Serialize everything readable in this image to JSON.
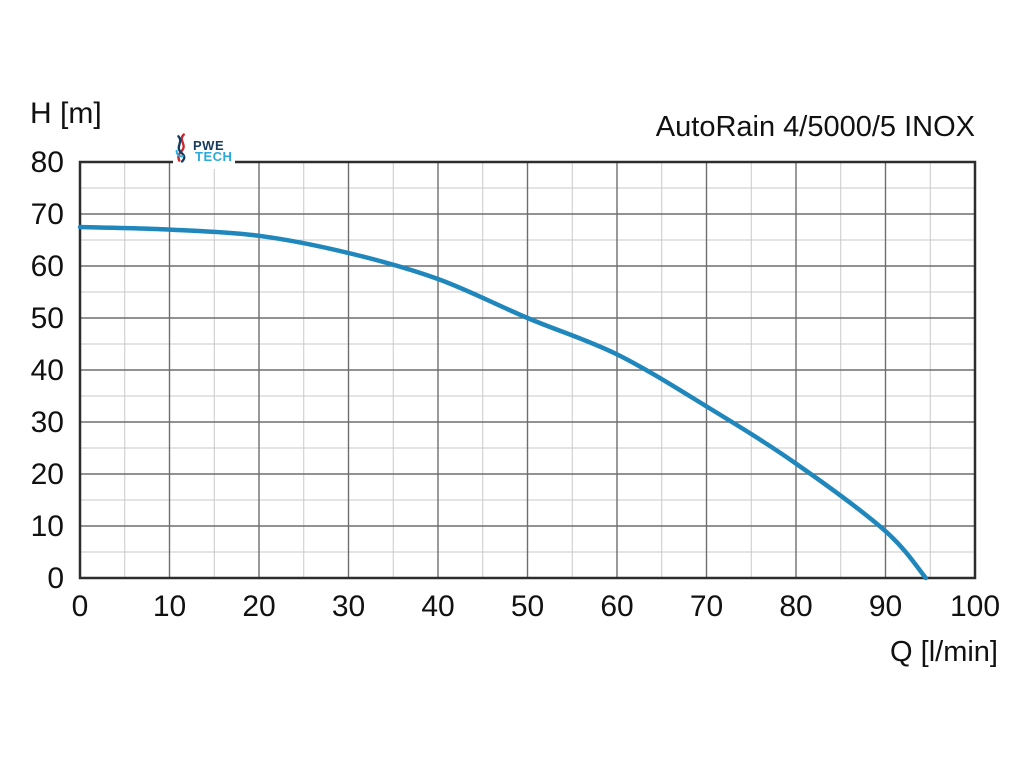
{
  "logo": {
    "word_top": "PWE",
    "word_bottom": "TECH"
  },
  "colors": {
    "curve": "#1f87bc",
    "grid_major": "#6e6e6e",
    "grid_minor": "#c9c9c9",
    "plot_border": "#2d2d2d",
    "text": "#111111",
    "logo_navy": "#163a5f",
    "logo_cyan": "#2aa9dc",
    "logo_red": "#c9252c"
  },
  "chart_data": {
    "type": "line",
    "title": "AutoRain 4/5000/5 INOX",
    "xlabel": "Q [l/min]",
    "ylabel": "H [m]",
    "xlim": [
      0,
      100
    ],
    "ylim": [
      0,
      80
    ],
    "x_ticks": [
      0,
      10,
      20,
      30,
      40,
      50,
      60,
      70,
      80,
      90,
      100
    ],
    "y_ticks": [
      0,
      10,
      20,
      30,
      40,
      50,
      60,
      70,
      80
    ],
    "minor_grid_step": 5,
    "grid": "major+minor",
    "legend": "none",
    "series": [
      {
        "name": "AutoRain 4/5000/5 INOX pump curve",
        "color": "#1f87bc",
        "points": [
          [
            0,
            67.5
          ],
          [
            10,
            67
          ],
          [
            20,
            65.8
          ],
          [
            30,
            62.5
          ],
          [
            40,
            57.5
          ],
          [
            50,
            50
          ],
          [
            60,
            43
          ],
          [
            70,
            33
          ],
          [
            80,
            22
          ],
          [
            90,
            9
          ],
          [
            94.5,
            0
          ]
        ]
      }
    ]
  }
}
